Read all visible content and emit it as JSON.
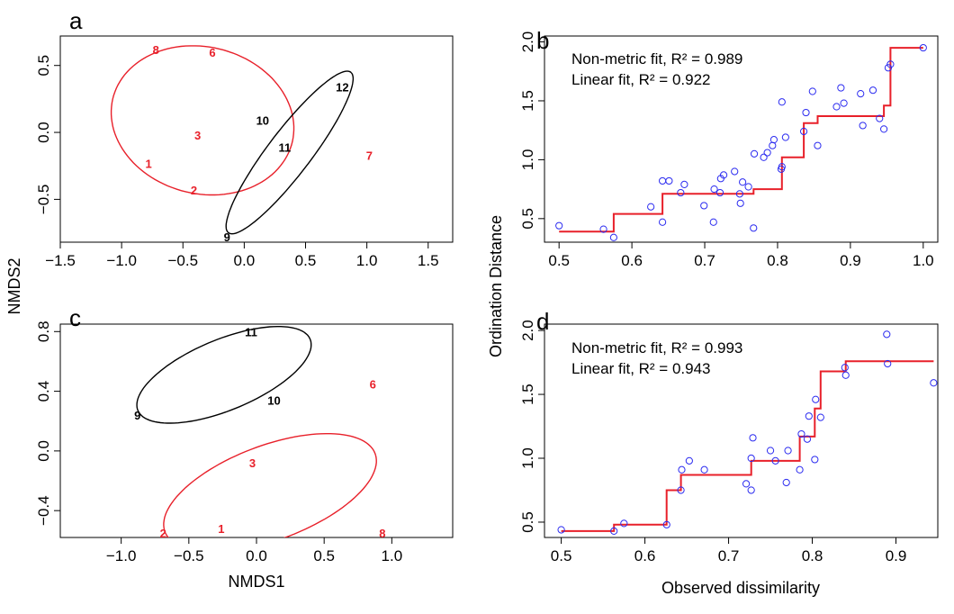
{
  "figure": {
    "xlabel_left": "NMDS1",
    "ylabel_left": "NMDS2",
    "xlabel_right": "Observed dissimilarity",
    "ylabel_right": "Ordination Distance"
  },
  "colors": {
    "red": "#e8202a",
    "black": "#000000",
    "blue": "#2b2bf0"
  },
  "chart_data": [
    {
      "panel": "a",
      "type": "scatter",
      "xlim": [
        -1.5,
        1.7
      ],
      "ylim": [
        -0.82,
        0.72
      ],
      "xticks": [
        -1.5,
        -1.0,
        -0.5,
        0.0,
        0.5,
        1.0,
        1.5
      ],
      "yticks": [
        -0.5,
        0.0,
        0.5
      ],
      "points": [
        {
          "label": "8",
          "x": -0.72,
          "y": 0.62,
          "group": "red"
        },
        {
          "label": "6",
          "x": -0.26,
          "y": 0.6,
          "group": "red"
        },
        {
          "label": "3",
          "x": -0.38,
          "y": -0.02,
          "group": "red"
        },
        {
          "label": "1",
          "x": -0.78,
          "y": -0.23,
          "group": "red"
        },
        {
          "label": "2",
          "x": -0.41,
          "y": -0.43,
          "group": "red"
        },
        {
          "label": "7",
          "x": 1.02,
          "y": -0.17,
          "group": "red"
        },
        {
          "label": "12",
          "x": 0.8,
          "y": 0.34,
          "group": "black"
        },
        {
          "label": "10",
          "x": 0.15,
          "y": 0.09,
          "group": "black"
        },
        {
          "label": "11",
          "x": 0.33,
          "y": -0.11,
          "group": "black"
        },
        {
          "label": "9",
          "x": -0.14,
          "y": -0.78,
          "group": "black"
        }
      ],
      "ellipses": [
        {
          "group": "red",
          "cx": -0.34,
          "cy": 0.09,
          "rx": 0.75,
          "ry": 0.55,
          "angle_deg": -10
        },
        {
          "group": "black",
          "cx": 0.37,
          "cy": -0.15,
          "rx": 0.78,
          "ry": 0.17,
          "angle_deg": 50
        }
      ]
    },
    {
      "panel": "b",
      "type": "scatter",
      "xlim": [
        0.48,
        1.02
      ],
      "ylim": [
        0.3,
        2.05
      ],
      "xticks": [
        0.5,
        0.6,
        0.7,
        0.8,
        0.9,
        1.0
      ],
      "yticks": [
        0.5,
        1.0,
        1.5,
        2.0
      ],
      "xtick_labels": [
        "0.5",
        "0.6",
        "0.7",
        "0.8",
        "0.9",
        "1.0"
      ],
      "ytick_labels": [
        "0.5",
        "1.0",
        "1.5",
        "2.0"
      ],
      "fit_lines": [
        "Non-metric fit, R² = 0.989",
        "Linear fit, R² = 0.922"
      ],
      "points": [
        [
          0.5,
          0.44
        ],
        [
          0.561,
          0.41
        ],
        [
          0.575,
          0.34
        ],
        [
          0.626,
          0.6
        ],
        [
          0.642,
          0.47
        ],
        [
          0.642,
          0.82
        ],
        [
          0.651,
          0.82
        ],
        [
          0.667,
          0.72
        ],
        [
          0.672,
          0.79
        ],
        [
          0.699,
          0.61
        ],
        [
          0.712,
          0.47
        ],
        [
          0.713,
          0.75
        ],
        [
          0.721,
          0.72
        ],
        [
          0.722,
          0.84
        ],
        [
          0.726,
          0.87
        ],
        [
          0.741,
          0.9
        ],
        [
          0.748,
          0.71
        ],
        [
          0.749,
          0.63
        ],
        [
          0.752,
          0.81
        ],
        [
          0.76,
          0.77
        ],
        [
          0.767,
          0.42
        ],
        [
          0.768,
          1.05
        ],
        [
          0.781,
          1.02
        ],
        [
          0.786,
          1.06
        ],
        [
          0.793,
          1.12
        ],
        [
          0.795,
          1.17
        ],
        [
          0.805,
          0.92
        ],
        [
          0.806,
          1.49
        ],
        [
          0.806,
          0.94
        ],
        [
          0.811,
          1.19
        ],
        [
          0.836,
          1.24
        ],
        [
          0.839,
          1.4
        ],
        [
          0.848,
          1.58
        ],
        [
          0.855,
          1.12
        ],
        [
          0.881,
          1.45
        ],
        [
          0.887,
          1.61
        ],
        [
          0.891,
          1.48
        ],
        [
          0.914,
          1.56
        ],
        [
          0.917,
          1.29
        ],
        [
          0.931,
          1.59
        ],
        [
          0.94,
          1.35
        ],
        [
          0.946,
          1.26
        ],
        [
          0.952,
          1.78
        ],
        [
          0.955,
          1.81
        ],
        [
          1.0,
          1.95
        ]
      ],
      "step": {
        "x": [
          0.5,
          0.575,
          0.575,
          0.642,
          0.642,
          0.767,
          0.767,
          0.806,
          0.806,
          0.836,
          0.836,
          0.855,
          0.855,
          0.946,
          0.946,
          0.955,
          0.955,
          1.0
        ],
        "y": [
          0.39,
          0.39,
          0.54,
          0.54,
          0.71,
          0.71,
          0.75,
          0.75,
          1.02,
          1.02,
          1.31,
          1.31,
          1.37,
          1.37,
          1.46,
          1.46,
          1.95,
          1.95
        ]
      }
    },
    {
      "panel": "c",
      "type": "scatter",
      "xlim": [
        -1.45,
        1.45
      ],
      "ylim": [
        -0.58,
        0.85
      ],
      "xticks": [
        -1.0,
        -0.5,
        0.0,
        0.5,
        1.0
      ],
      "yticks": [
        -0.4,
        0.0,
        0.4,
        0.8
      ],
      "points": [
        {
          "label": "11",
          "x": -0.04,
          "y": 0.8,
          "group": "black"
        },
        {
          "label": "10",
          "x": 0.13,
          "y": 0.34,
          "group": "black"
        },
        {
          "label": "9",
          "x": -0.88,
          "y": 0.24,
          "group": "black"
        },
        {
          "label": "6",
          "x": 0.86,
          "y": 0.45,
          "group": "red"
        },
        {
          "label": "3",
          "x": -0.03,
          "y": -0.08,
          "group": "red"
        },
        {
          "label": "1",
          "x": -0.26,
          "y": -0.52,
          "group": "red"
        },
        {
          "label": "2",
          "x": -0.69,
          "y": -0.55,
          "group": "red"
        },
        {
          "label": "8",
          "x": 0.93,
          "y": -0.55,
          "group": "red"
        }
      ],
      "ellipses": [
        {
          "group": "black",
          "cx": -0.24,
          "cy": 0.51,
          "rx": 0.68,
          "ry": 0.24,
          "angle_deg": 20
        },
        {
          "group": "red",
          "cx": 0.1,
          "cy": -0.28,
          "rx": 0.82,
          "ry": 0.32,
          "angle_deg": 18
        }
      ]
    },
    {
      "panel": "d",
      "type": "scatter",
      "xlim": [
        0.48,
        0.95
      ],
      "ylim": [
        0.38,
        2.05
      ],
      "xticks": [
        0.5,
        0.6,
        0.7,
        0.8,
        0.9
      ],
      "yticks": [
        0.5,
        1.0,
        1.5,
        2.0
      ],
      "xtick_labels": [
        "0.5",
        "0.6",
        "0.7",
        "0.8",
        "0.9"
      ],
      "ytick_labels": [
        "0.5",
        "1.0",
        "1.5",
        "2.0"
      ],
      "fit_lines": [
        "Non-metric fit, R² = 0.993",
        "Linear fit, R² = 0.943"
      ],
      "points": [
        [
          0.5,
          0.44
        ],
        [
          0.563,
          0.43
        ],
        [
          0.575,
          0.49
        ],
        [
          0.626,
          0.48
        ],
        [
          0.643,
          0.75
        ],
        [
          0.644,
          0.91
        ],
        [
          0.653,
          0.98
        ],
        [
          0.671,
          0.91
        ],
        [
          0.721,
          0.8
        ],
        [
          0.727,
          0.75
        ],
        [
          0.727,
          1.0
        ],
        [
          0.729,
          1.16
        ],
        [
          0.75,
          1.06
        ],
        [
          0.756,
          0.98
        ],
        [
          0.769,
          0.81
        ],
        [
          0.771,
          1.06
        ],
        [
          0.785,
          0.91
        ],
        [
          0.787,
          1.19
        ],
        [
          0.794,
          1.15
        ],
        [
          0.796,
          1.33
        ],
        [
          0.803,
          0.99
        ],
        [
          0.804,
          1.46
        ],
        [
          0.81,
          1.32
        ],
        [
          0.839,
          1.71
        ],
        [
          0.84,
          1.65
        ],
        [
          0.889,
          1.97
        ],
        [
          0.89,
          1.74
        ],
        [
          0.945,
          1.59
        ]
      ],
      "step": {
        "x": [
          0.5,
          0.563,
          0.563,
          0.626,
          0.626,
          0.643,
          0.643,
          0.727,
          0.727,
          0.785,
          0.785,
          0.803,
          0.803,
          0.81,
          0.81,
          0.84,
          0.84,
          0.945
        ],
        "y": [
          0.43,
          0.43,
          0.48,
          0.48,
          0.75,
          0.75,
          0.87,
          0.87,
          0.98,
          0.98,
          1.17,
          1.17,
          1.39,
          1.39,
          1.68,
          1.68,
          1.76,
          1.76
        ]
      }
    }
  ]
}
